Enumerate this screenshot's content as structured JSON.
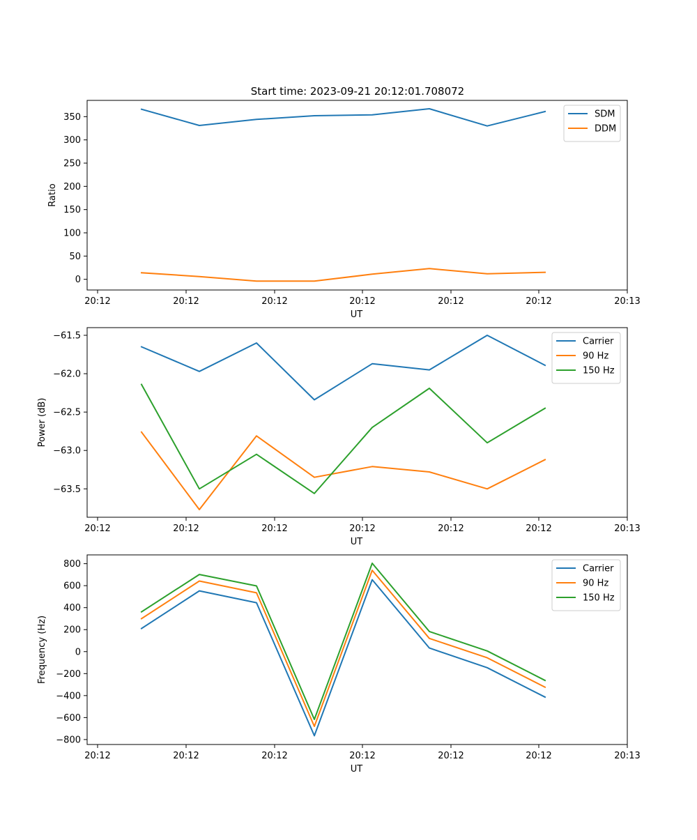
{
  "title": "Start time: 2023-09-21 20:12:01.708072",
  "colors": {
    "blue": "#1f77b4",
    "orange": "#ff7f0e",
    "green": "#2ca02c"
  },
  "chart_data": [
    {
      "type": "line",
      "xlabel": "UT",
      "ylabel": "Ratio",
      "x_tick_labels": [
        "20:12",
        "20:12",
        "20:12",
        "20:12",
        "20:12",
        "20:12",
        "20:13"
      ],
      "y_ticks": [
        0,
        50,
        100,
        150,
        200,
        250,
        300,
        350
      ],
      "y_tick_labels": [
        "0",
        "50",
        "100",
        "150",
        "200",
        "250",
        "300",
        "350"
      ],
      "ylim": [
        -23,
        385
      ],
      "legend_position": "top-right",
      "series": [
        {
          "name": "SDM",
          "color": "#1f77b4",
          "values": [
            366,
            331,
            344,
            352,
            354,
            367,
            330,
            361
          ]
        },
        {
          "name": "DDM",
          "color": "#ff7f0e",
          "values": [
            14,
            6,
            -4,
            -4,
            11,
            23,
            12,
            15
          ]
        }
      ]
    },
    {
      "type": "line",
      "xlabel": "UT",
      "ylabel": "Power (dB)",
      "x_tick_labels": [
        "20:12",
        "20:12",
        "20:12",
        "20:12",
        "20:12",
        "20:12",
        "20:13"
      ],
      "y_ticks": [
        -63.5,
        -63.0,
        -62.5,
        -62.0,
        -61.5
      ],
      "y_tick_labels": [
        "−63.5",
        "−63.0",
        "−62.5",
        "−62.0",
        "−61.5"
      ],
      "ylim": [
        -63.87,
        -61.4
      ],
      "legend_position": "top-right",
      "series": [
        {
          "name": "Carrier",
          "color": "#1f77b4",
          "values": [
            -61.65,
            -61.97,
            -61.6,
            -62.34,
            -61.87,
            -61.95,
            -61.5,
            -61.89
          ]
        },
        {
          "name": "90 Hz",
          "color": "#ff7f0e",
          "values": [
            -62.76,
            -63.77,
            -62.81,
            -63.35,
            -63.21,
            -63.28,
            -63.5,
            -63.12
          ]
        },
        {
          "name": "150 Hz",
          "color": "#2ca02c",
          "values": [
            -62.14,
            -63.5,
            -63.05,
            -63.56,
            -62.7,
            -62.19,
            -62.9,
            -62.45
          ]
        }
      ]
    },
    {
      "type": "line",
      "xlabel": "UT",
      "ylabel": "Frequency (Hz)",
      "x_tick_labels": [
        "20:12",
        "20:12",
        "20:12",
        "20:12",
        "20:12",
        "20:12",
        "20:13"
      ],
      "y_ticks": [
        -800,
        -600,
        -400,
        -200,
        0,
        200,
        400,
        600,
        800
      ],
      "y_tick_labels": [
        "−800",
        "−600",
        "−400",
        "−200",
        "0",
        "200",
        "400",
        "600",
        "800"
      ],
      "ylim": [
        -845,
        880
      ],
      "legend_position": "top-right",
      "series": [
        {
          "name": "Carrier",
          "color": "#1f77b4",
          "values": [
            210,
            553,
            445,
            -765,
            654,
            33,
            -146,
            -414
          ]
        },
        {
          "name": "90 Hz",
          "color": "#ff7f0e",
          "values": [
            300,
            642,
            535,
            -680,
            740,
            120,
            -56,
            -324
          ]
        },
        {
          "name": "150 Hz",
          "color": "#2ca02c",
          "values": [
            362,
            702,
            598,
            -617,
            804,
            183,
            6,
            -262
          ]
        }
      ]
    }
  ]
}
